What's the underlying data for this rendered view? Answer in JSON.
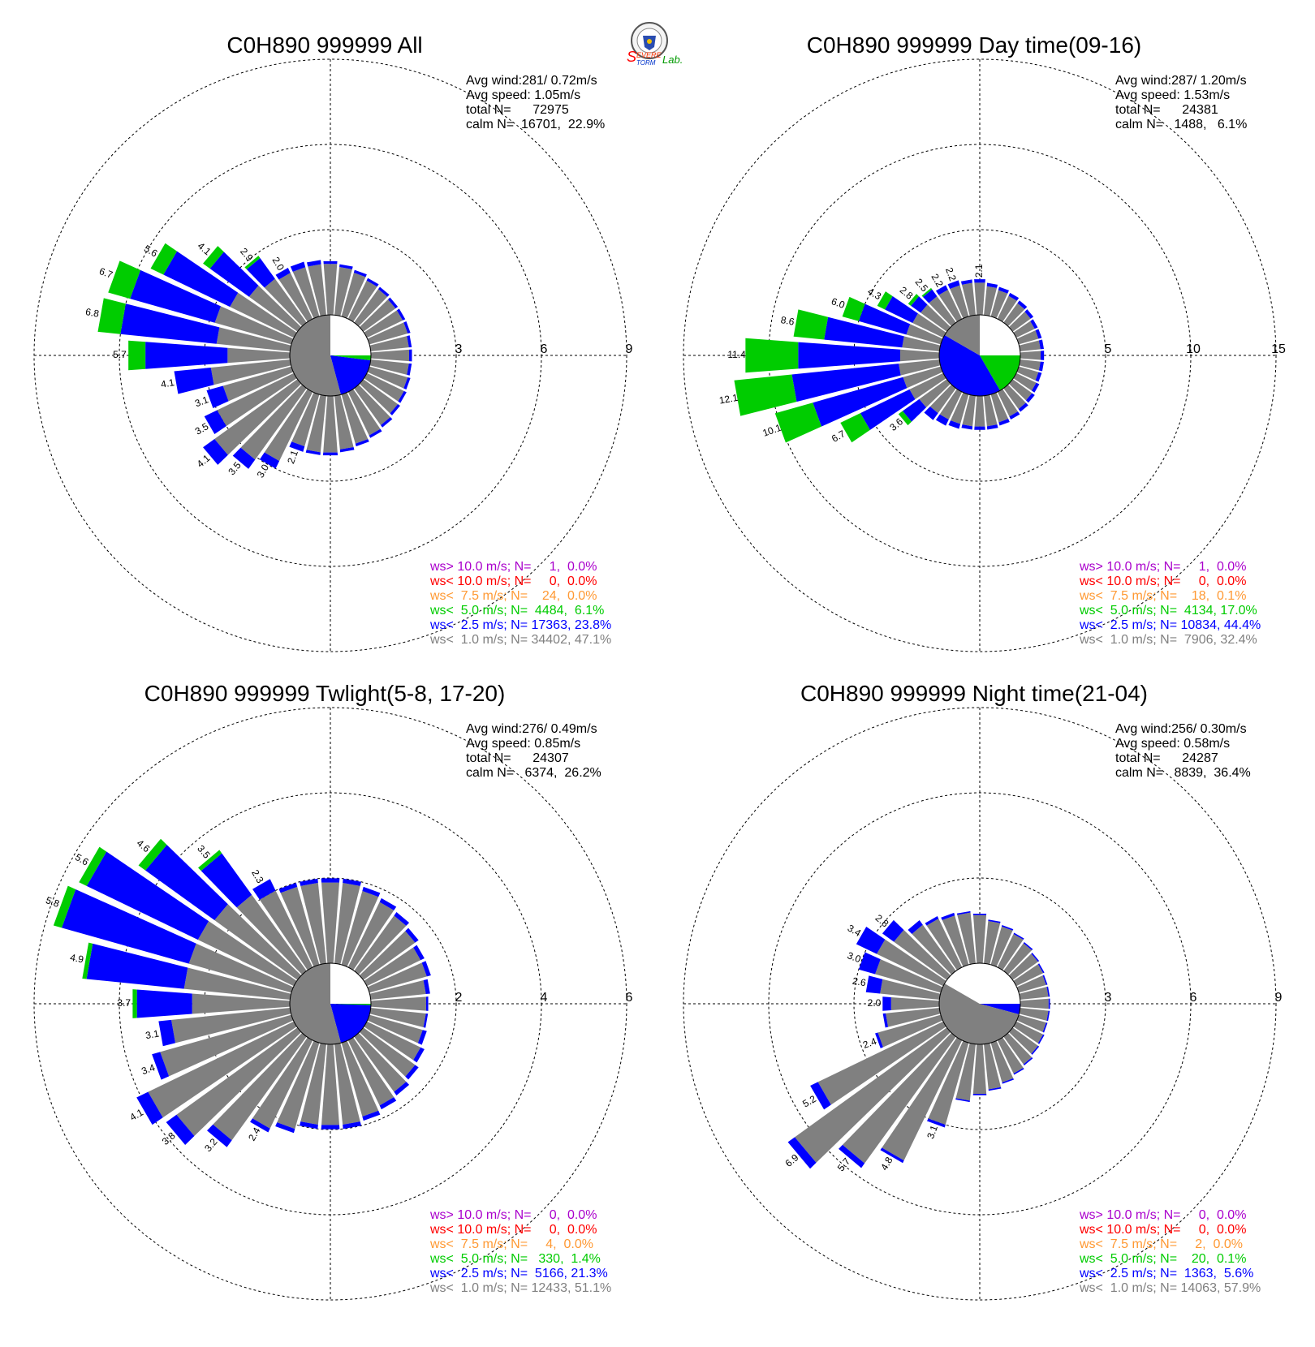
{
  "logo": {
    "text_s": "S",
    "text_severe": "EVERE",
    "text_storm": "TORM",
    "text_lab": "Lab."
  },
  "colors": {
    "gray": "#808080",
    "blue": "#0000ff",
    "green": "#00cc00",
    "orange": "#ff9933",
    "red": "#ff0000",
    "purple": "#aa00cc",
    "grid": "#000000"
  },
  "chart_data": [
    {
      "type": "rose",
      "title": "C0H890 999999 All",
      "info": [
        "Avg wind:281/ 0.72m/s",
        "Avg speed: 1.05m/s",
        "total N=      72975",
        "calm N=  16701,  22.9%"
      ],
      "rings": [
        3,
        6,
        9
      ],
      "legend": [
        {
          "text": "ws> 10.0 m/s; N=     1,  0.0%",
          "color": "purple"
        },
        {
          "text": "ws< 10.0 m/s; N=     0,  0.0%",
          "color": "red"
        },
        {
          "text": "ws<  7.5 m/s; N=    24,  0.0%",
          "color": "orange"
        },
        {
          "text": "ws<  5.0 m/s; N=  4484,  6.1%",
          "color": "green"
        },
        {
          "text": "ws<  2.5 m/s; N= 17363, 23.8%",
          "color": "blue"
        },
        {
          "text": "ws<  1.0 m/s; N= 34402, 47.1%",
          "color": "gray"
        }
      ],
      "calm_pie": [
        {
          "from": 0,
          "to": 90,
          "color": "white"
        },
        {
          "from": 90,
          "to": 97,
          "color": "green"
        },
        {
          "from": 97,
          "to": 165,
          "color": "blue"
        },
        {
          "from": 165,
          "to": 360,
          "color": "gray"
        }
      ],
      "bars": [
        {
          "dir": 0,
          "g": 1.8,
          "b": 0.1
        },
        {
          "dir": 10,
          "g": 1.7,
          "b": 0.1
        },
        {
          "dir": 20,
          "g": 1.6,
          "b": 0.1
        },
        {
          "dir": 30,
          "g": 1.5,
          "b": 0.1
        },
        {
          "dir": 40,
          "g": 1.45,
          "b": 0.1
        },
        {
          "dir": 50,
          "g": 1.4,
          "b": 0.1
        },
        {
          "dir": 60,
          "g": 1.4,
          "b": 0.1
        },
        {
          "dir": 70,
          "g": 1.4,
          "b": 0.1
        },
        {
          "dir": 80,
          "g": 1.35,
          "b": 0.1
        },
        {
          "dir": 90,
          "g": 1.35,
          "b": 0.1
        },
        {
          "dir": 100,
          "g": 1.35,
          "b": 0.1
        },
        {
          "dir": 110,
          "g": 1.4,
          "b": 0.1
        },
        {
          "dir": 120,
          "g": 1.45,
          "b": 0.1
        },
        {
          "dir": 130,
          "g": 1.5,
          "b": 0.1
        },
        {
          "dir": 140,
          "g": 1.6,
          "b": 0.1
        },
        {
          "dir": 150,
          "g": 1.7,
          "b": 0.1
        },
        {
          "dir": 160,
          "g": 1.8,
          "b": 0.1
        },
        {
          "dir": 170,
          "g": 1.9,
          "b": 0.1
        },
        {
          "dir": 180,
          "g": 2.0,
          "b": 0.1
        },
        {
          "dir": 190,
          "g": 2.0,
          "b": 0.1
        },
        {
          "dir": 200,
          "g": 1.9,
          "b": 0.2,
          "label": "2.1"
        },
        {
          "dir": 210,
          "g": 2.7,
          "b": 0.3,
          "label": "3.0"
        },
        {
          "dir": 220,
          "g": 3.1,
          "b": 0.4,
          "label": "3.5"
        },
        {
          "dir": 230,
          "g": 3.6,
          "b": 0.5,
          "label": "4.1"
        },
        {
          "dir": 240,
          "g": 3.0,
          "b": 0.5,
          "label": "3.5"
        },
        {
          "dir": 250,
          "g": 2.5,
          "b": 0.6,
          "label": "3.1"
        },
        {
          "dir": 260,
          "g": 2.8,
          "b": 1.3,
          "label": "4.1"
        },
        {
          "dir": 270,
          "g": 2.2,
          "b": 2.9,
          "g2": 0.6,
          "label": "5.7"
        },
        {
          "dir": 280,
          "g": 2.6,
          "b": 3.4,
          "g2": 0.8,
          "label": "6.8"
        },
        {
          "dir": 290,
          "g": 2.8,
          "b": 3.1,
          "g2": 0.8,
          "label": "6.7"
        },
        {
          "dir": 300,
          "g": 2.5,
          "b": 2.6,
          "g2": 0.5,
          "label": "5.6"
        },
        {
          "dir": 310,
          "g": 2.1,
          "b": 1.7,
          "g2": 0.3,
          "label": "4.1"
        },
        {
          "dir": 320,
          "g": 1.9,
          "b": 0.9,
          "g2": 0.1,
          "label": "2.9"
        },
        {
          "dir": 330,
          "g": 1.8,
          "b": 0.2,
          "label": "2.0"
        },
        {
          "dir": 340,
          "g": 1.8,
          "b": 0.2
        },
        {
          "dir": 350,
          "g": 1.8,
          "b": 0.15
        }
      ]
    },
    {
      "type": "rose",
      "title": "C0H890 999999 Day time(09-16)",
      "info": [
        "Avg wind:287/ 1.20m/s",
        "Avg speed: 1.53m/s",
        "total N=      24381",
        "calm N=   1488,   6.1%"
      ],
      "rings": [
        5,
        10,
        15
      ],
      "legend": [
        {
          "text": "ws> 10.0 m/s; N=     1,  0.0%",
          "color": "purple"
        },
        {
          "text": "ws< 10.0 m/s; N=     0,  0.0%",
          "color": "red"
        },
        {
          "text": "ws<  7.5 m/s; N=    18,  0.1%",
          "color": "orange"
        },
        {
          "text": "ws<  5.0 m/s; N=  4134, 17.0%",
          "color": "green"
        },
        {
          "text": "ws<  2.5 m/s; N= 10834, 44.4%",
          "color": "blue"
        },
        {
          "text": "ws<  1.0 m/s; N=  7906, 32.4%",
          "color": "gray"
        }
      ],
      "calm_pie": [
        {
          "from": 0,
          "to": 72,
          "color": "white"
        },
        {
          "from": 72,
          "to": 90,
          "color": "white"
        },
        {
          "from": 90,
          "to": 150,
          "color": "green"
        },
        {
          "from": 150,
          "to": 300,
          "color": "blue"
        },
        {
          "from": 300,
          "to": 360,
          "color": "gray"
        }
      ],
      "bars": [
        {
          "dir": 0,
          "g": 1.9,
          "b": 0.2,
          "label": "2.1"
        },
        {
          "dir": 10,
          "g": 1.7,
          "b": 0.2
        },
        {
          "dir": 20,
          "g": 1.6,
          "b": 0.2
        },
        {
          "dir": 30,
          "g": 1.5,
          "b": 0.2
        },
        {
          "dir": 40,
          "g": 1.4,
          "b": 0.2
        },
        {
          "dir": 50,
          "g": 1.3,
          "b": 0.2
        },
        {
          "dir": 60,
          "g": 1.2,
          "b": 0.2
        },
        {
          "dir": 70,
          "g": 1.2,
          "b": 0.2
        },
        {
          "dir": 80,
          "g": 1.2,
          "b": 0.2
        },
        {
          "dir": 90,
          "g": 1.2,
          "b": 0.2
        },
        {
          "dir": 100,
          "g": 1.2,
          "b": 0.2
        },
        {
          "dir": 110,
          "g": 1.2,
          "b": 0.2
        },
        {
          "dir": 120,
          "g": 1.3,
          "b": 0.2
        },
        {
          "dir": 130,
          "g": 1.4,
          "b": 0.2
        },
        {
          "dir": 140,
          "g": 1.5,
          "b": 0.2
        },
        {
          "dir": 150,
          "g": 1.6,
          "b": 0.2
        },
        {
          "dir": 160,
          "g": 1.7,
          "b": 0.2
        },
        {
          "dir": 170,
          "g": 1.8,
          "b": 0.2
        },
        {
          "dir": 180,
          "g": 1.8,
          "b": 0.2
        },
        {
          "dir": 190,
          "g": 1.8,
          "b": 0.2
        },
        {
          "dir": 200,
          "g": 1.8,
          "b": 0.3
        },
        {
          "dir": 210,
          "g": 1.8,
          "b": 0.4
        },
        {
          "dir": 220,
          "g": 1.8,
          "b": 0.5
        },
        {
          "dir": 230,
          "g": 2.0,
          "b": 1.2,
          "g2": 0.3,
          "label": "3.6"
        },
        {
          "dir": 240,
          "g": 2.2,
          "b": 3.2,
          "g2": 1.3,
          "label": "6.7"
        },
        {
          "dir": 250,
          "g": 2.3,
          "b": 5.5,
          "g2": 2.3,
          "label": "10.1"
        },
        {
          "dir": 260,
          "g": 2.4,
          "b": 6.3,
          "g2": 3.4,
          "label": "12.1"
        },
        {
          "dir": 270,
          "g": 2.3,
          "b": 6.0,
          "g2": 3.1,
          "label": "11.4"
        },
        {
          "dir": 280,
          "g": 2.2,
          "b": 4.6,
          "g2": 1.8,
          "label": "8.6"
        },
        {
          "dir": 290,
          "g": 2.1,
          "b": 2.9,
          "g2": 1.0,
          "label": "6.0"
        },
        {
          "dir": 300,
          "g": 2.0,
          "b": 1.8,
          "g2": 0.5,
          "label": "4.3"
        },
        {
          "dir": 310,
          "g": 1.9,
          "b": 0.7,
          "g2": 0.2,
          "label": "2.8"
        },
        {
          "dir": 320,
          "g": 1.9,
          "b": 0.5,
          "g2": 0.1,
          "label": "2.5"
        },
        {
          "dir": 330,
          "g": 1.9,
          "b": 0.3,
          "label": "2.2"
        },
        {
          "dir": 340,
          "g": 1.9,
          "b": 0.3,
          "label": "2.2"
        },
        {
          "dir": 350,
          "g": 1.9,
          "b": 0.2
        }
      ]
    },
    {
      "type": "rose",
      "title": "C0H890 999999 Twlight(5-8, 17-20)",
      "info": [
        "Avg wind:276/ 0.49m/s",
        "Avg speed: 0.85m/s",
        "total N=      24307",
        "calm N=   6374,  26.2%"
      ],
      "rings": [
        2,
        4,
        6
      ],
      "legend": [
        {
          "text": "ws> 10.0 m/s; N=     0,  0.0%",
          "color": "purple"
        },
        {
          "text": "ws< 10.0 m/s; N=     0,  0.0%",
          "color": "red"
        },
        {
          "text": "ws<  7.5 m/s; N=     4,  0.0%",
          "color": "orange"
        },
        {
          "text": "ws<  5.0 m/s; N=   330,  1.4%",
          "color": "green"
        },
        {
          "text": "ws<  2.5 m/s; N=  5166, 21.3%",
          "color": "blue"
        },
        {
          "text": "ws<  1.0 m/s; N= 12433, 51.1%",
          "color": "gray"
        }
      ],
      "calm_pie": [
        {
          "from": 0,
          "to": 90,
          "color": "white"
        },
        {
          "from": 90,
          "to": 92,
          "color": "green"
        },
        {
          "from": 92,
          "to": 165,
          "color": "blue"
        },
        {
          "from": 165,
          "to": 360,
          "color": "gray"
        }
      ],
      "bars": [
        {
          "dir": 0,
          "g": 1.9,
          "b": 0.1
        },
        {
          "dir": 10,
          "g": 1.9,
          "b": 0.1
        },
        {
          "dir": 20,
          "g": 1.8,
          "b": 0.1
        },
        {
          "dir": 30,
          "g": 1.7,
          "b": 0.1
        },
        {
          "dir": 40,
          "g": 1.6,
          "b": 0.1
        },
        {
          "dir": 50,
          "g": 1.5,
          "b": 0.1
        },
        {
          "dir": 60,
          "g": 1.4,
          "b": 0.1
        },
        {
          "dir": 70,
          "g": 1.4,
          "b": 0.1
        },
        {
          "dir": 80,
          "g": 1.3,
          "b": 0.1
        },
        {
          "dir": 90,
          "g": 1.3,
          "b": 0.05
        },
        {
          "dir": 100,
          "g": 1.3,
          "b": 0.05
        },
        {
          "dir": 110,
          "g": 1.3,
          "b": 0.1
        },
        {
          "dir": 120,
          "g": 1.4,
          "b": 0.1
        },
        {
          "dir": 130,
          "g": 1.5,
          "b": 0.1
        },
        {
          "dir": 140,
          "g": 1.6,
          "b": 0.1
        },
        {
          "dir": 150,
          "g": 1.7,
          "b": 0.1
        },
        {
          "dir": 160,
          "g": 1.8,
          "b": 0.1
        },
        {
          "dir": 170,
          "g": 1.9,
          "b": 0.1
        },
        {
          "dir": 180,
          "g": 1.9,
          "b": 0.1
        },
        {
          "dir": 190,
          "g": 1.9,
          "b": 0.1
        },
        {
          "dir": 200,
          "g": 2.1,
          "b": 0.1
        },
        {
          "dir": 210,
          "g": 2.3,
          "b": 0.1,
          "label": "2.4"
        },
        {
          "dir": 220,
          "g": 3.0,
          "b": 0.2,
          "label": "3.2"
        },
        {
          "dir": 230,
          "g": 3.5,
          "b": 0.3,
          "label": "3.8"
        },
        {
          "dir": 240,
          "g": 3.8,
          "b": 0.3,
          "label": "4.1"
        },
        {
          "dir": 250,
          "g": 3.2,
          "b": 0.2,
          "label": "3.4"
        },
        {
          "dir": 260,
          "g": 2.8,
          "b": 0.3,
          "label": "3.1"
        },
        {
          "dir": 270,
          "g": 2.3,
          "b": 1.3,
          "g2": 0.1,
          "label": "3.7"
        },
        {
          "dir": 280,
          "g": 2.5,
          "b": 2.3,
          "g2": 0.1,
          "label": "4.9"
        },
        {
          "dir": 290,
          "g": 2.5,
          "b": 3.1,
          "g2": 0.2,
          "label": "5.8"
        },
        {
          "dir": 300,
          "g": 2.5,
          "b": 2.9,
          "g2": 0.2,
          "label": "5.6"
        },
        {
          "dir": 310,
          "g": 2.4,
          "b": 2.0,
          "g2": 0.2,
          "label": "4.6"
        },
        {
          "dir": 320,
          "g": 2.2,
          "b": 1.2,
          "g2": 0.1,
          "label": "3.5"
        },
        {
          "dir": 330,
          "g": 2.0,
          "b": 0.3,
          "label": "2.3"
        },
        {
          "dir": 340,
          "g": 1.9,
          "b": 0.1
        },
        {
          "dir": 350,
          "g": 1.9,
          "b": 0.1
        }
      ]
    },
    {
      "type": "rose",
      "title": "C0H890 999999 Night time(21-04)",
      "info": [
        "Avg wind:256/ 0.30m/s",
        "Avg speed: 0.58m/s",
        "total N=      24287",
        "calm N=   8839,  36.4%"
      ],
      "rings": [
        3,
        6,
        9
      ],
      "legend": [
        {
          "text": "ws> 10.0 m/s; N=     0,  0.0%",
          "color": "purple"
        },
        {
          "text": "ws< 10.0 m/s; N=     0,  0.0%",
          "color": "red"
        },
        {
          "text": "ws<  7.5 m/s; N=     2,  0.0%",
          "color": "orange"
        },
        {
          "text": "ws<  5.0 m/s; N=    20,  0.1%",
          "color": "green"
        },
        {
          "text": "ws<  2.5 m/s; N=  1363,  5.6%",
          "color": "blue"
        },
        {
          "text": "ws<  1.0 m/s; N= 14063, 57.9%",
          "color": "gray"
        }
      ],
      "calm_pie": [
        {
          "from": 0,
          "to": 90,
          "color": "white"
        },
        {
          "from": 90,
          "to": 105,
          "color": "blue"
        },
        {
          "from": 105,
          "to": 300,
          "color": "gray"
        },
        {
          "from": 300,
          "to": 360,
          "color": "white"
        }
      ],
      "bars": [
        {
          "dir": 0,
          "g": 1.7,
          "b": 0.05
        },
        {
          "dir": 10,
          "g": 1.5,
          "b": 0.05
        },
        {
          "dir": 20,
          "g": 1.4,
          "b": 0.05
        },
        {
          "dir": 30,
          "g": 1.3,
          "b": 0.05
        },
        {
          "dir": 40,
          "g": 1.2,
          "b": 0.05
        },
        {
          "dir": 50,
          "g": 1.1,
          "b": 0.05
        },
        {
          "dir": 60,
          "g": 1.05,
          "b": 0.05
        },
        {
          "dir": 70,
          "g": 1.0,
          "b": 0.05
        },
        {
          "dir": 80,
          "g": 1.0,
          "b": 0.05
        },
        {
          "dir": 90,
          "g": 1.0,
          "b": 0.05
        },
        {
          "dir": 100,
          "g": 1.0,
          "b": 0.05
        },
        {
          "dir": 110,
          "g": 1.0,
          "b": 0.05
        },
        {
          "dir": 120,
          "g": 1.05,
          "b": 0.05
        },
        {
          "dir": 130,
          "g": 1.1,
          "b": 0.05
        },
        {
          "dir": 140,
          "g": 1.2,
          "b": 0.05
        },
        {
          "dir": 150,
          "g": 1.3,
          "b": 0.05
        },
        {
          "dir": 160,
          "g": 1.45,
          "b": 0.05
        },
        {
          "dir": 170,
          "g": 1.6,
          "b": 0.05
        },
        {
          "dir": 180,
          "g": 1.75,
          "b": 0.05
        },
        {
          "dir": 190,
          "g": 2.0,
          "b": 0.05
        },
        {
          "dir": 200,
          "g": 3.0,
          "b": 0.1,
          "label": "3.1"
        },
        {
          "dir": 210,
          "g": 4.7,
          "b": 0.1,
          "label": "4.8"
        },
        {
          "dir": 220,
          "g": 5.5,
          "b": 0.2,
          "label": "5.7"
        },
        {
          "dir": 230,
          "g": 6.6,
          "b": 0.3,
          "label": "6.9"
        },
        {
          "dir": 240,
          "g": 4.9,
          "b": 0.3,
          "label": "5.2"
        },
        {
          "dir": 250,
          "g": 2.3,
          "b": 0.1,
          "label": "2.4"
        },
        {
          "dir": 260,
          "g": 1.9,
          "b": 0.1
        },
        {
          "dir": 270,
          "g": 1.7,
          "b": 0.3,
          "label": "2.0"
        },
        {
          "dir": 280,
          "g": 2.1,
          "b": 0.5,
          "label": "2.6"
        },
        {
          "dir": 290,
          "g": 2.4,
          "b": 0.6,
          "label": "3.0"
        },
        {
          "dir": 300,
          "g": 2.6,
          "b": 0.8,
          "label": "3.4"
        },
        {
          "dir": 310,
          "g": 2.3,
          "b": 0.5,
          "label": "2.8"
        },
        {
          "dir": 320,
          "g": 2.0,
          "b": 0.2
        },
        {
          "dir": 330,
          "g": 1.9,
          "b": 0.1
        },
        {
          "dir": 340,
          "g": 1.8,
          "b": 0.1
        },
        {
          "dir": 350,
          "g": 1.8,
          "b": 0.05
        }
      ]
    }
  ]
}
